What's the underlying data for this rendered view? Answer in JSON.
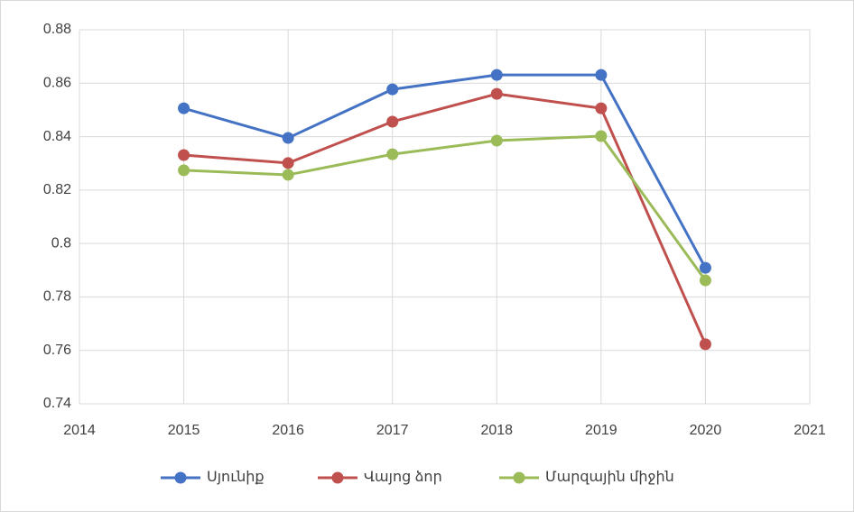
{
  "chart_data": {
    "type": "line",
    "x": [
      2015,
      2016,
      2017,
      2018,
      2019,
      2020
    ],
    "series": [
      {
        "name": "Սյունիք",
        "color": "#4472c4",
        "values": [
          0.8506,
          0.8395,
          0.8577,
          0.8631,
          0.8631,
          0.7909
        ]
      },
      {
        "name": "Վայոց ձոր",
        "color": "#c0504d",
        "values": [
          0.8331,
          0.8301,
          0.8456,
          0.856,
          0.8506,
          0.7623
        ]
      },
      {
        "name": "Մարզային միջին",
        "color": "#9bbb59",
        "values": [
          0.8274,
          0.8257,
          0.8334,
          0.8385,
          0.8402,
          0.7862
        ]
      }
    ],
    "xlim": [
      2014,
      2021
    ],
    "xticks": [
      2014,
      2015,
      2016,
      2017,
      2018,
      2019,
      2020,
      2021
    ],
    "ylim": [
      0.74,
      0.88
    ],
    "yticks": [
      0.74,
      0.76,
      0.78,
      0.8,
      0.82,
      0.84,
      0.86,
      0.88
    ],
    "grid": true,
    "legend": "bottom"
  }
}
